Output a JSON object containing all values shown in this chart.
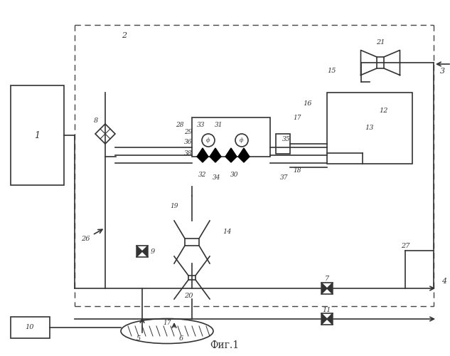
{
  "title": "Фиг.1",
  "bg_color": "#ffffff",
  "line_color": "#333333",
  "dash_color": "#555555",
  "figsize": [
    6.33,
    5.0
  ],
  "dpi": 100
}
